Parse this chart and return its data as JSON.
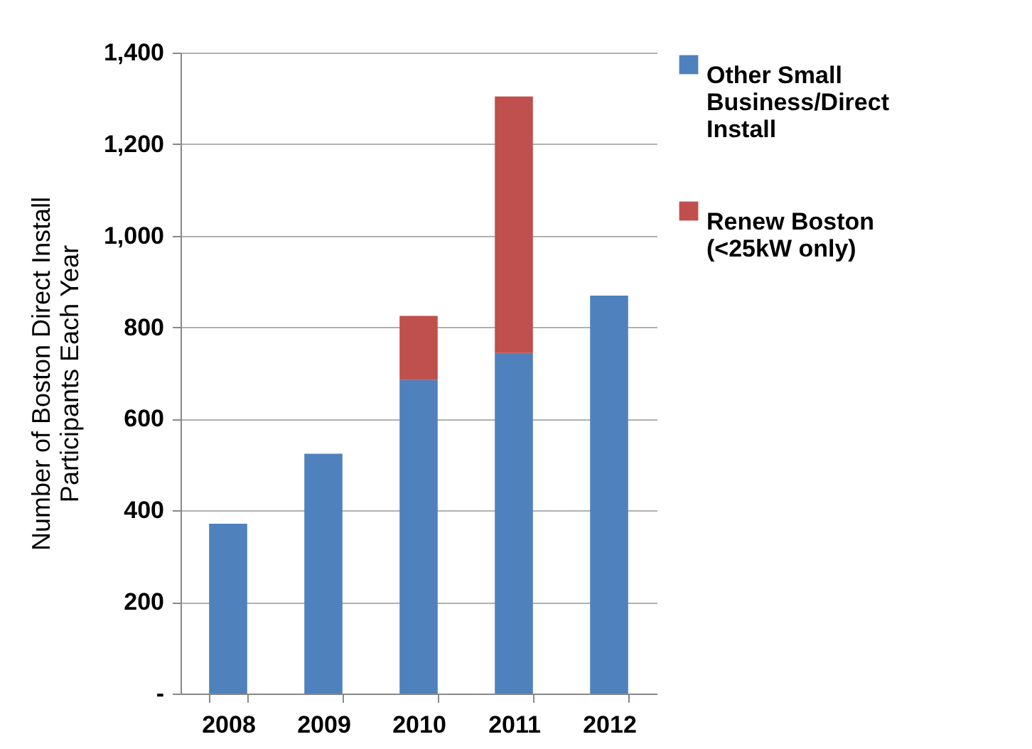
{
  "chart_data": {
    "type": "bar",
    "ylabel": "Number of Boston Direct Install Participants Each Year",
    "categories": [
      "2008",
      "2009",
      "2010",
      "2011",
      "2012"
    ],
    "stacked": true,
    "series": [
      {
        "name": "Other Small Business/Direct Install",
        "color": "#4f81bd",
        "values": [
          371,
          524,
          685,
          744,
          869
        ]
      },
      {
        "name": "Renew Boston (<25kW only)",
        "color": "#c0504d",
        "values": [
          0,
          0,
          140,
          560,
          0
        ]
      }
    ],
    "ylim": [
      0,
      1400
    ],
    "yticks": [
      {
        "value": 0,
        "label": "-"
      },
      {
        "value": 200,
        "label": "200"
      },
      {
        "value": 400,
        "label": "400"
      },
      {
        "value": 600,
        "label": "600"
      },
      {
        "value": 800,
        "label": "800"
      },
      {
        "value": 1000,
        "label": "1,000"
      },
      {
        "value": 1200,
        "label": "1,200"
      },
      {
        "value": 1400,
        "label": "1,400"
      }
    ],
    "grid": "y",
    "legend": "right"
  }
}
